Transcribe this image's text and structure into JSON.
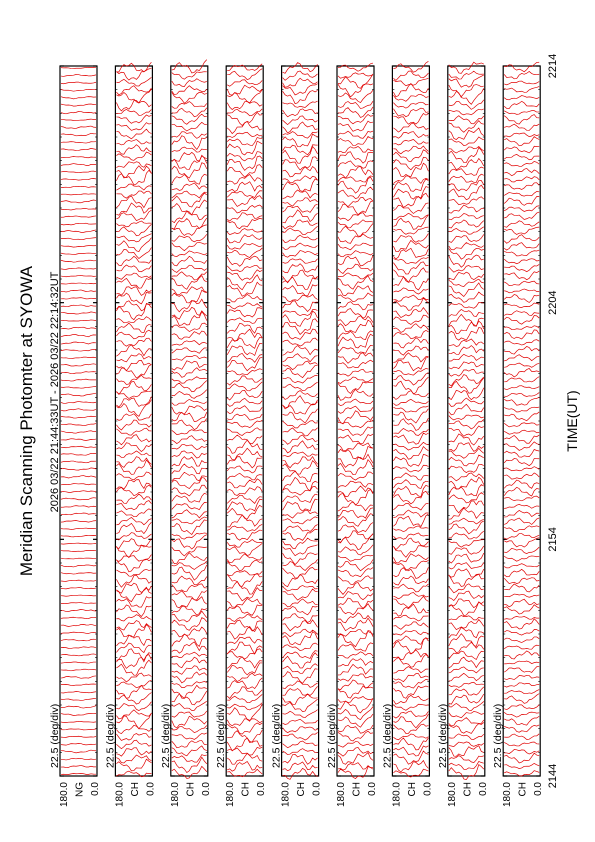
{
  "title": "Meridian Scanning Photomter at SYOWA",
  "time_range": "2026 03/22 21:44:33UT - 2026 03/22 22:14:32UT",
  "x_axis_label": "TIME(UT)",
  "x_ticks": [
    "2144",
    "2154",
    "2204",
    "2214"
  ],
  "scale_label": "22.5 (deg/div)",
  "y_tick_top": "180.0",
  "y_tick_bottom": "0.0",
  "colors": {
    "trace": "#e00000",
    "frame": "#000000",
    "background": "#ffffff"
  },
  "chart_data": {
    "type": "line",
    "title": "Meridian Scanning Photomter at SYOWA",
    "xlabel": "TIME(UT)",
    "x_ticks": [
      "2144",
      "2154",
      "2204",
      "2214"
    ],
    "xlim": [
      "2144",
      "2214"
    ],
    "ylim": [
      0,
      180
    ],
    "y_unit_label": "22.5 (deg/div)",
    "grid": false,
    "orientation": "rotated-90-counterclockwise",
    "panels": [
      {
        "channel_label": "NG",
        "scale": "22.5 (deg/div)",
        "ylim": [
          0,
          180
        ]
      },
      {
        "channel_label": "CH",
        "scale": "22.5 (deg/div)",
        "ylim": [
          0,
          180
        ]
      },
      {
        "channel_label": "CH",
        "scale": "22.5 (deg/div)",
        "ylim": [
          0,
          180
        ]
      },
      {
        "channel_label": "CH",
        "scale": "22.5 (deg/div)",
        "ylim": [
          0,
          180
        ]
      },
      {
        "channel_label": "CH",
        "scale": "22.5 (deg/div)",
        "ylim": [
          0,
          180
        ]
      },
      {
        "channel_label": "CH",
        "scale": "22.5 (deg/div)",
        "ylim": [
          0,
          180
        ]
      },
      {
        "channel_label": "CH",
        "scale": "22.5 (deg/div)",
        "ylim": [
          0,
          180
        ]
      },
      {
        "channel_label": "CH",
        "scale": "22.5 (deg/div)",
        "ylim": [
          0,
          180
        ]
      },
      {
        "channel_label": "CH",
        "scale": "22.5 (deg/div)",
        "ylim": [
          0,
          180
        ]
      }
    ]
  }
}
